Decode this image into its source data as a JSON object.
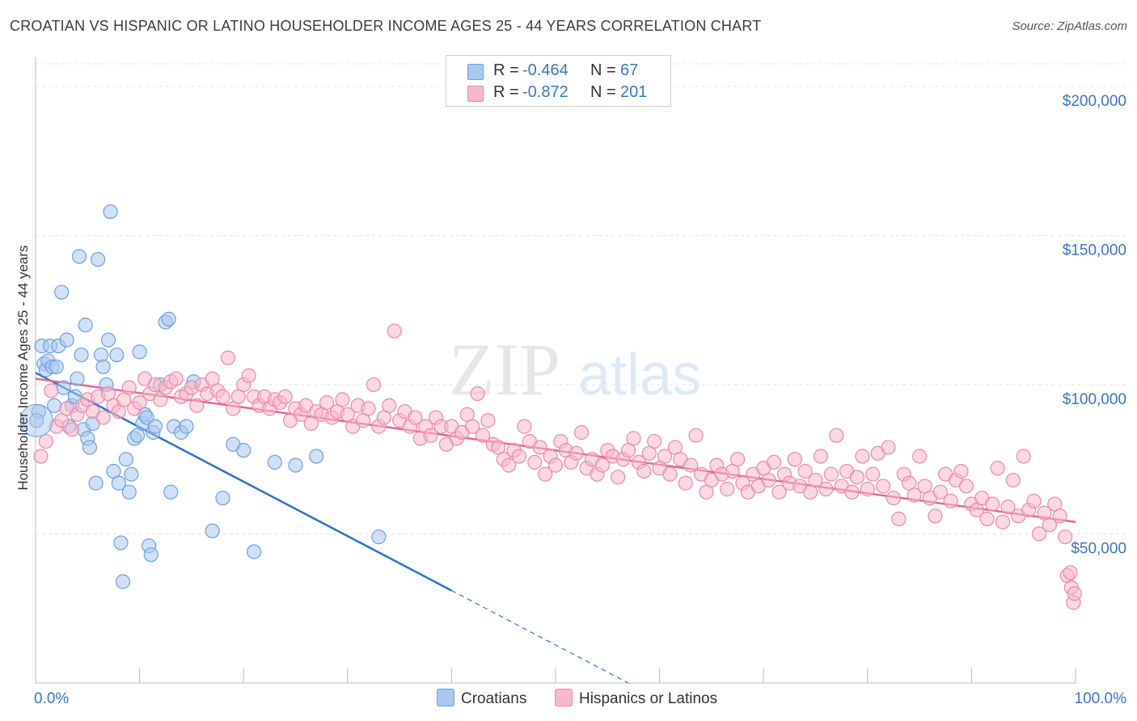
{
  "header": {
    "title": "CROATIAN VS HISPANIC OR LATINO HOUSEHOLDER INCOME AGES 25 - 44 YEARS CORRELATION CHART",
    "source": "Source: ZipAtlas.com"
  },
  "watermark": {
    "zip": "ZIP",
    "atlas": "atlas"
  },
  "legend": {
    "rows": [
      {
        "r_label": "R =",
        "r_value": "-0.464",
        "n_label": "N =",
        "n_value": "67",
        "color": "#a9c8f0",
        "border": "#6f9fdc"
      },
      {
        "r_label": "R =",
        "r_value": "-0.872",
        "n_label": "N =",
        "n_value": "201",
        "color": "#f7b8cb",
        "border": "#e98aa8"
      }
    ]
  },
  "bottom_legend": {
    "croatians": "Croatians",
    "hispanics": "Hispanics or Latinos"
  },
  "chart_data": {
    "type": "scatter",
    "title": "CROATIAN VS HISPANIC OR LATINO HOUSEHOLDER INCOME AGES 25 - 44 YEARS CORRELATION CHART",
    "xlabel": "",
    "ylabel": "Householder Income Ages 25 - 44 years",
    "x_unit": "percent",
    "xlim": [
      0,
      100
    ],
    "ylim": [
      0,
      210000
    ],
    "x_tick_labels": [
      "0.0%",
      "100.0%"
    ],
    "y_ticks": [
      50000,
      100000,
      150000,
      200000
    ],
    "y_tick_labels": [
      "$50,000",
      "$100,000",
      "$150,000",
      "$200,000"
    ],
    "grid": true,
    "legend_position": "top-center",
    "series": [
      {
        "name": "Croatians",
        "color": "#6f9fdc",
        "fill": "#a9c8f0",
        "trend": {
          "x": [
            0,
            40
          ],
          "y": [
            104000,
            31000
          ],
          "dashed_extension_to": [
            57,
            0
          ]
        },
        "points": [
          [
            0.3,
            91000
          ],
          [
            0.6,
            113000
          ],
          [
            0.8,
            107000
          ],
          [
            1.0,
            105000
          ],
          [
            1.2,
            108000
          ],
          [
            1.4,
            113000
          ],
          [
            1.6,
            106000
          ],
          [
            1.8,
            93000
          ],
          [
            2.0,
            106000
          ],
          [
            2.2,
            113000
          ],
          [
            2.5,
            131000
          ],
          [
            2.7,
            99000
          ],
          [
            3.0,
            115000
          ],
          [
            3.2,
            86000
          ],
          [
            3.5,
            93000
          ],
          [
            3.8,
            96000
          ],
          [
            4.0,
            102000
          ],
          [
            4.2,
            143000
          ],
          [
            4.4,
            110000
          ],
          [
            4.6,
            85000
          ],
          [
            4.8,
            120000
          ],
          [
            5.0,
            82000
          ],
          [
            5.2,
            79000
          ],
          [
            5.5,
            87000
          ],
          [
            5.8,
            67000
          ],
          [
            6.0,
            142000
          ],
          [
            6.3,
            110000
          ],
          [
            6.5,
            106000
          ],
          [
            6.8,
            100000
          ],
          [
            7.0,
            115000
          ],
          [
            7.2,
            158000
          ],
          [
            7.5,
            71000
          ],
          [
            7.8,
            110000
          ],
          [
            8.0,
            67000
          ],
          [
            8.2,
            47000
          ],
          [
            8.4,
            34000
          ],
          [
            8.7,
            75000
          ],
          [
            9.0,
            64000
          ],
          [
            9.2,
            70000
          ],
          [
            9.5,
            82000
          ],
          [
            9.8,
            83000
          ],
          [
            10.0,
            111000
          ],
          [
            10.3,
            87000
          ],
          [
            10.5,
            90000
          ],
          [
            10.7,
            89000
          ],
          [
            10.9,
            46000
          ],
          [
            11.1,
            43000
          ],
          [
            11.3,
            84000
          ],
          [
            11.5,
            86000
          ],
          [
            12.0,
            100000
          ],
          [
            12.5,
            121000
          ],
          [
            12.8,
            122000
          ],
          [
            13.0,
            64000
          ],
          [
            13.3,
            86000
          ],
          [
            14.0,
            84000
          ],
          [
            14.5,
            86000
          ],
          [
            15.2,
            101000
          ],
          [
            17.0,
            51000
          ],
          [
            18.0,
            62000
          ],
          [
            19.0,
            80000
          ],
          [
            20.0,
            78000
          ],
          [
            21.0,
            44000
          ],
          [
            23.0,
            74000
          ],
          [
            25.0,
            73000
          ],
          [
            27.0,
            76000
          ],
          [
            33.0,
            49000
          ],
          [
            0.1,
            88000
          ]
        ]
      },
      {
        "name": "Hispanics or Latinos",
        "color": "#e98aa8",
        "fill": "#f7b8cb",
        "trend": {
          "x": [
            0,
            100
          ],
          "y": [
            102000,
            54000
          ]
        },
        "points": [
          [
            0.5,
            76000
          ],
          [
            1.0,
            81000
          ],
          [
            1.5,
            98000
          ],
          [
            2.0,
            86000
          ],
          [
            2.5,
            88000
          ],
          [
            3.0,
            92000
          ],
          [
            3.5,
            85000
          ],
          [
            4.0,
            90000
          ],
          [
            4.5,
            93000
          ],
          [
            5.0,
            95000
          ],
          [
            5.5,
            91000
          ],
          [
            6.0,
            96000
          ],
          [
            6.5,
            89000
          ],
          [
            7.0,
            97000
          ],
          [
            7.5,
            93000
          ],
          [
            8.0,
            91000
          ],
          [
            8.5,
            95000
          ],
          [
            9.0,
            99000
          ],
          [
            9.5,
            92000
          ],
          [
            10.0,
            94000
          ],
          [
            10.5,
            102000
          ],
          [
            11.0,
            97000
          ],
          [
            11.5,
            100000
          ],
          [
            12.0,
            95000
          ],
          [
            12.5,
            99000
          ],
          [
            13.0,
            101000
          ],
          [
            13.5,
            102000
          ],
          [
            14.0,
            96000
          ],
          [
            14.5,
            97000
          ],
          [
            15.0,
            99000
          ],
          [
            15.5,
            93000
          ],
          [
            16.0,
            100000
          ],
          [
            16.5,
            97000
          ],
          [
            17.0,
            102000
          ],
          [
            17.5,
            98000
          ],
          [
            18.0,
            96000
          ],
          [
            18.5,
            109000
          ],
          [
            19.0,
            92000
          ],
          [
            19.5,
            96000
          ],
          [
            20.0,
            100000
          ],
          [
            20.5,
            103000
          ],
          [
            21.0,
            96000
          ],
          [
            21.5,
            93000
          ],
          [
            22.0,
            96000
          ],
          [
            22.5,
            92000
          ],
          [
            23.0,
            95000
          ],
          [
            23.5,
            94000
          ],
          [
            24.0,
            96000
          ],
          [
            24.5,
            88000
          ],
          [
            25.0,
            92000
          ],
          [
            25.5,
            90000
          ],
          [
            26.0,
            93000
          ],
          [
            26.5,
            87000
          ],
          [
            27.0,
            91000
          ],
          [
            27.5,
            90000
          ],
          [
            28.0,
            94000
          ],
          [
            28.5,
            89000
          ],
          [
            29.0,
            91000
          ],
          [
            29.5,
            95000
          ],
          [
            30.0,
            90000
          ],
          [
            30.5,
            86000
          ],
          [
            31.0,
            93000
          ],
          [
            31.5,
            88000
          ],
          [
            32.0,
            92000
          ],
          [
            32.5,
            100000
          ],
          [
            33.0,
            86000
          ],
          [
            33.5,
            89000
          ],
          [
            34.0,
            93000
          ],
          [
            34.5,
            118000
          ],
          [
            35.0,
            88000
          ],
          [
            35.5,
            91000
          ],
          [
            36.0,
            86000
          ],
          [
            36.5,
            89000
          ],
          [
            37.0,
            82000
          ],
          [
            37.5,
            86000
          ],
          [
            38.0,
            83000
          ],
          [
            38.5,
            89000
          ],
          [
            39.0,
            86000
          ],
          [
            39.5,
            80000
          ],
          [
            40.0,
            86000
          ],
          [
            40.5,
            82000
          ],
          [
            41.0,
            84000
          ],
          [
            41.5,
            90000
          ],
          [
            42.0,
            86000
          ],
          [
            42.5,
            97000
          ],
          [
            43.0,
            83000
          ],
          [
            43.5,
            88000
          ],
          [
            44.0,
            80000
          ],
          [
            44.5,
            79000
          ],
          [
            45.0,
            75000
          ],
          [
            45.5,
            73000
          ],
          [
            46.0,
            78000
          ],
          [
            46.5,
            76000
          ],
          [
            47.0,
            86000
          ],
          [
            47.5,
            81000
          ],
          [
            48.0,
            74000
          ],
          [
            48.5,
            79000
          ],
          [
            49.0,
            70000
          ],
          [
            49.5,
            76000
          ],
          [
            50.0,
            73000
          ],
          [
            50.5,
            81000
          ],
          [
            51.0,
            78000
          ],
          [
            51.5,
            74000
          ],
          [
            52.0,
            77000
          ],
          [
            52.5,
            84000
          ],
          [
            53.0,
            72000
          ],
          [
            53.5,
            75000
          ],
          [
            54.0,
            70000
          ],
          [
            54.5,
            73000
          ],
          [
            55.0,
            78000
          ],
          [
            55.5,
            76000
          ],
          [
            56.0,
            69000
          ],
          [
            56.5,
            75000
          ],
          [
            57.0,
            78000
          ],
          [
            57.5,
            82000
          ],
          [
            58.0,
            74000
          ],
          [
            58.5,
            71000
          ],
          [
            59.0,
            77000
          ],
          [
            59.5,
            81000
          ],
          [
            60.0,
            72000
          ],
          [
            60.5,
            76000
          ],
          [
            61.0,
            70000
          ],
          [
            61.5,
            79000
          ],
          [
            62.0,
            75000
          ],
          [
            62.5,
            67000
          ],
          [
            63.0,
            73000
          ],
          [
            63.5,
            83000
          ],
          [
            64.0,
            70000
          ],
          [
            64.5,
            64000
          ],
          [
            65.0,
            68000
          ],
          [
            65.5,
            73000
          ],
          [
            66.0,
            70000
          ],
          [
            66.5,
            65000
          ],
          [
            67.0,
            71000
          ],
          [
            67.5,
            75000
          ],
          [
            68.0,
            67000
          ],
          [
            68.5,
            64000
          ],
          [
            69.0,
            70000
          ],
          [
            69.5,
            66000
          ],
          [
            70.0,
            72000
          ],
          [
            70.5,
            68000
          ],
          [
            71.0,
            74000
          ],
          [
            71.5,
            64000
          ],
          [
            72.0,
            70000
          ],
          [
            72.5,
            67000
          ],
          [
            73.0,
            75000
          ],
          [
            73.5,
            66000
          ],
          [
            74.0,
            71000
          ],
          [
            74.5,
            64000
          ],
          [
            75.0,
            68000
          ],
          [
            75.5,
            76000
          ],
          [
            76.0,
            65000
          ],
          [
            76.5,
            70000
          ],
          [
            77.0,
            83000
          ],
          [
            77.5,
            66000
          ],
          [
            78.0,
            71000
          ],
          [
            78.5,
            64000
          ],
          [
            79.0,
            69000
          ],
          [
            79.5,
            76000
          ],
          [
            80.0,
            65000
          ],
          [
            80.5,
            70000
          ],
          [
            81.0,
            77000
          ],
          [
            81.5,
            66000
          ],
          [
            82.0,
            79000
          ],
          [
            82.5,
            62000
          ],
          [
            83.0,
            55000
          ],
          [
            83.5,
            70000
          ],
          [
            84.0,
            67000
          ],
          [
            84.5,
            63000
          ],
          [
            85.0,
            76000
          ],
          [
            85.5,
            66000
          ],
          [
            86.0,
            62000
          ],
          [
            86.5,
            56000
          ],
          [
            87.0,
            64000
          ],
          [
            87.5,
            70000
          ],
          [
            88.0,
            61000
          ],
          [
            88.5,
            68000
          ],
          [
            89.0,
            71000
          ],
          [
            89.5,
            66000
          ],
          [
            90.0,
            60000
          ],
          [
            90.5,
            58000
          ],
          [
            91.0,
            62000
          ],
          [
            91.5,
            55000
          ],
          [
            92.0,
            60000
          ],
          [
            92.5,
            72000
          ],
          [
            93.0,
            54000
          ],
          [
            93.5,
            59000
          ],
          [
            94.0,
            68000
          ],
          [
            94.5,
            56000
          ],
          [
            95.0,
            76000
          ],
          [
            95.5,
            58000
          ],
          [
            96.0,
            61000
          ],
          [
            96.5,
            50000
          ],
          [
            97.0,
            57000
          ],
          [
            97.5,
            53000
          ],
          [
            98.0,
            60000
          ],
          [
            98.5,
            56000
          ],
          [
            99.0,
            49000
          ],
          [
            99.2,
            36000
          ],
          [
            99.5,
            37000
          ],
          [
            99.6,
            32000
          ],
          [
            99.8,
            27000
          ],
          [
            99.9,
            30000
          ]
        ]
      }
    ]
  }
}
